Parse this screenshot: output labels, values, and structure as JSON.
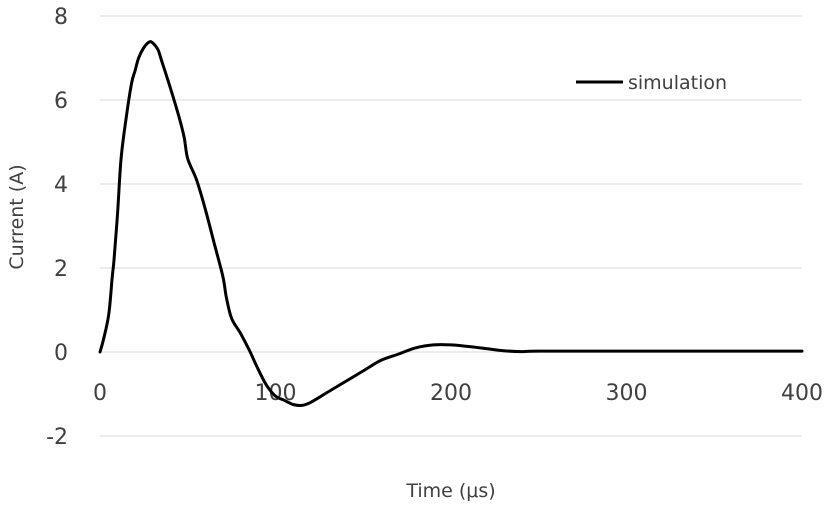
{
  "chart_data": {
    "type": "line",
    "xlabel": "Time (μs)",
    "ylabel": "Current (A)",
    "xlim": [
      0,
      400
    ],
    "ylim": [
      -2,
      8
    ],
    "xticks": [
      0,
      100,
      200,
      300,
      400
    ],
    "yticks": [
      -2,
      0,
      2,
      4,
      6,
      8
    ],
    "grid": "horizontal",
    "legend_position": "top-right",
    "colors": {
      "series": "#000000",
      "grid": "#d9d9d9",
      "text": "#404040"
    },
    "series": [
      {
        "name": "simulation",
        "x": [
          0,
          2,
          5,
          7,
          8,
          10,
          12,
          15,
          18,
          20,
          22,
          25,
          28,
          30,
          33,
          35,
          40,
          45,
          48,
          50,
          55,
          60,
          65,
          70,
          72,
          75,
          80,
          85,
          90,
          95,
          100,
          105,
          110,
          115,
          120,
          130,
          140,
          150,
          160,
          170,
          180,
          190,
          200,
          210,
          220,
          230,
          240,
          250,
          300,
          350,
          400
        ],
        "y": [
          0,
          0.3,
          0.9,
          1.8,
          2.2,
          3.3,
          4.6,
          5.6,
          6.4,
          6.7,
          7.0,
          7.25,
          7.38,
          7.36,
          7.2,
          6.95,
          6.3,
          5.6,
          5.1,
          4.6,
          4.1,
          3.4,
          2.6,
          1.8,
          1.3,
          0.8,
          0.45,
          0.05,
          -0.4,
          -0.8,
          -1.05,
          -1.15,
          -1.25,
          -1.27,
          -1.2,
          -0.95,
          -0.7,
          -0.45,
          -0.2,
          -0.05,
          0.1,
          0.17,
          0.17,
          0.13,
          0.08,
          0.03,
          0.01,
          0.02,
          0.02,
          0.02,
          0.02
        ]
      }
    ]
  }
}
